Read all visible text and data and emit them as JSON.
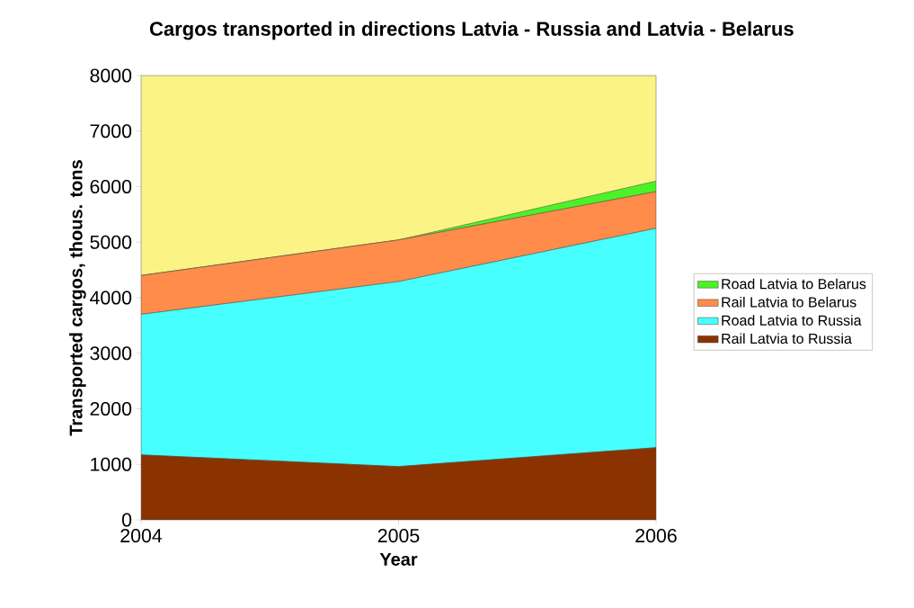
{
  "chart_data": {
    "type": "area",
    "stacked": true,
    "title": "Cargos transported in directions Latvia - Russia and Latvia - Belarus",
    "xlabel": "Year",
    "ylabel": "Transported cargos, thous. tons",
    "x": [
      2004,
      2005,
      2006
    ],
    "series": [
      {
        "name": "Rail Latvia to Russia",
        "color": "#8b3300",
        "values": [
          1170,
          960,
          1300
        ]
      },
      {
        "name": "Road Latvia to Russia",
        "color": "#48ffff",
        "values": [
          2530,
          3330,
          3950
        ]
      },
      {
        "name": "Rail Latvia to Belarus",
        "color": "#ff8c4a",
        "values": [
          700,
          750,
          660
        ]
      },
      {
        "name": "Road Latvia to Belarus",
        "color": "#4cf227",
        "values": [
          0,
          0,
          190
        ]
      }
    ],
    "xlim": [
      2004,
      2006
    ],
    "xticks": [
      2004,
      2005,
      2006
    ],
    "ylim": [
      0,
      8000
    ],
    "yticks": [
      0,
      1000,
      2000,
      3000,
      4000,
      5000,
      6000,
      7000,
      8000
    ],
    "bands": [
      {
        "axis": "y",
        "from": 0,
        "to": 8000,
        "color": "#fbf383"
      }
    ],
    "legend": "right",
    "grid": false
  }
}
